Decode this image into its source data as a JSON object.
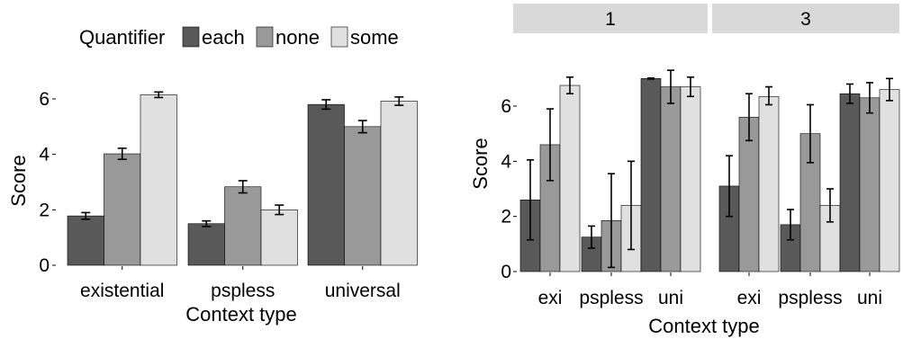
{
  "colors": {
    "each": "#595959",
    "none": "#999999",
    "some": "#e0e0e0",
    "strip": "#d9d9d9"
  },
  "chart_data": [
    {
      "type": "bar",
      "legend": {
        "title": "Quantifier",
        "position": "top",
        "entries": [
          "each",
          "none",
          "some"
        ]
      },
      "categories": [
        "existential",
        "pspless",
        "universal"
      ],
      "xlabel": "Context type",
      "ylabel": "Score",
      "ylim": [
        0,
        7
      ],
      "yticks": [
        0,
        2,
        4,
        6
      ],
      "series": [
        {
          "name": "each",
          "values": [
            1.78,
            1.5,
            5.8
          ],
          "err": [
            0.12,
            0.1,
            0.17
          ]
        },
        {
          "name": "none",
          "values": [
            4.02,
            2.83,
            5.0
          ],
          "err": [
            0.2,
            0.22,
            0.22
          ]
        },
        {
          "name": "some",
          "values": [
            6.15,
            2.0,
            5.92
          ],
          "err": [
            0.1,
            0.17,
            0.15
          ]
        }
      ]
    },
    {
      "type": "bar",
      "facets": [
        {
          "label": "1",
          "categories": [
            "exi",
            "pspless",
            "uni"
          ],
          "series": [
            {
              "name": "each",
              "values": [
                2.6,
                1.25,
                7.0
              ],
              "lo": [
                1.15,
                0.85,
                6.98
              ],
              "hi": [
                4.05,
                1.65,
                7.02
              ]
            },
            {
              "name": "none",
              "values": [
                4.6,
                1.85,
                6.7
              ],
              "lo": [
                3.3,
                0.15,
                6.1
              ],
              "hi": [
                5.9,
                3.55,
                7.3
              ]
            },
            {
              "name": "some",
              "values": [
                6.75,
                2.4,
                6.7
              ],
              "lo": [
                6.45,
                0.8,
                6.35
              ],
              "hi": [
                7.05,
                4.0,
                7.05
              ]
            }
          ]
        },
        {
          "label": "3",
          "categories": [
            "exi",
            "pspless",
            "uni"
          ],
          "series": [
            {
              "name": "each",
              "values": [
                3.1,
                1.7,
                6.45
              ],
              "lo": [
                2.0,
                1.15,
                6.1
              ],
              "hi": [
                4.2,
                2.25,
                6.8
              ]
            },
            {
              "name": "none",
              "values": [
                5.6,
                5.0,
                6.3
              ],
              "lo": [
                4.75,
                3.95,
                5.75
              ],
              "hi": [
                6.45,
                6.05,
                6.85
              ]
            },
            {
              "name": "some",
              "values": [
                6.35,
                2.4,
                6.6
              ],
              "lo": [
                6.05,
                1.8,
                6.2
              ],
              "hi": [
                6.7,
                3.0,
                7.0
              ]
            }
          ]
        }
      ],
      "xlabel": "Context type",
      "ylabel": "Score",
      "ylim": [
        0,
        7
      ],
      "yticks": [
        0,
        2,
        4,
        6
      ]
    }
  ]
}
